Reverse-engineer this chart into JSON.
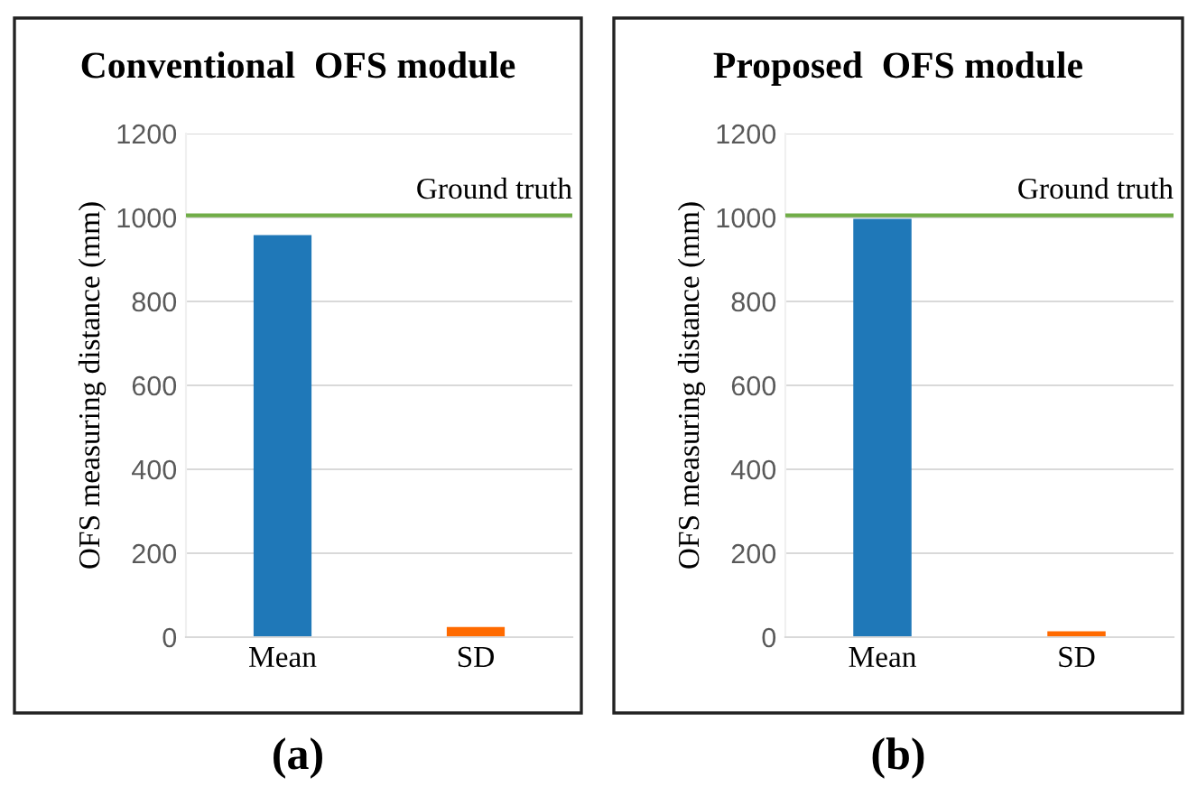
{
  "chart_data": [
    {
      "type": "bar",
      "title": "Conventional  OFS module",
      "ylabel": "OFS measuring distance (mm)",
      "categories": [
        "Mean",
        "SD"
      ],
      "values": [
        958,
        24
      ],
      "colors": [
        "#1f78b8",
        "#ff6a00"
      ],
      "ylim": [
        0,
        1200
      ],
      "yticks": [
        0,
        200,
        400,
        600,
        800,
        1000,
        1200
      ],
      "grid": "y",
      "ref_lines": [
        {
          "axis": "y",
          "value": 1005,
          "label": "Ground truth",
          "color": "#70ad47"
        }
      ],
      "annotations": [
        "(a)"
      ]
    },
    {
      "type": "bar",
      "title": "Proposed  OFS module",
      "ylabel": "OFS measuring distance (mm)",
      "categories": [
        "Mean",
        "SD"
      ],
      "values": [
        997,
        14
      ],
      "colors": [
        "#1f78b8",
        "#ff6a00"
      ],
      "ylim": [
        0,
        1200
      ],
      "yticks": [
        0,
        200,
        400,
        600,
        800,
        1000,
        1200
      ],
      "grid": "y",
      "ref_lines": [
        {
          "axis": "y",
          "value": 1005,
          "label": "Ground truth",
          "color": "#70ad47"
        }
      ],
      "annotations": [
        "(b)"
      ]
    }
  ]
}
